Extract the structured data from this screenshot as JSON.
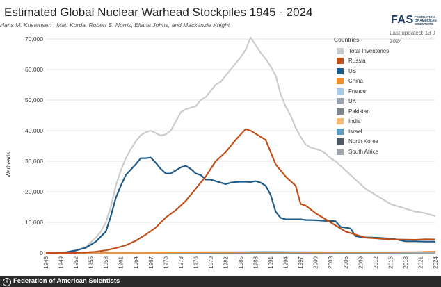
{
  "header": {
    "title": "Estimated Global Nuclear Warhead Stockpiles 1945 - 2024",
    "subtitle": "Hans M. Kristensen , Matt Korda, Robert S. Norris, Eliana Johns, and Mackenzie Knight",
    "logo": "FAS",
    "logo_text": "FEDERATION OF AMERICAN SCIENTISTS",
    "updated_line1": "Last updated: 13 J",
    "updated_line2": "2024"
  },
  "footer": {
    "credit": "Federation of American Scientists"
  },
  "legend": {
    "title": "Countries",
    "items": [
      {
        "label": "Total Inventories",
        "color": "#c9cccf"
      },
      {
        "label": "Russia",
        "color": "#c0501a"
      },
      {
        "label": "US",
        "color": "#1f5a86"
      },
      {
        "label": "China",
        "color": "#f28e2b"
      },
      {
        "label": "France",
        "color": "#a7cbe4"
      },
      {
        "label": "UK",
        "color": "#9aa3ab"
      },
      {
        "label": "Pakistan",
        "color": "#7b848c"
      },
      {
        "label": "India",
        "color": "#f5bc79"
      },
      {
        "label": "Israel",
        "color": "#5b9bc5"
      },
      {
        "label": "North Korea",
        "color": "#4f5963"
      },
      {
        "label": "South Africa",
        "color": "#9ea4aa"
      }
    ]
  },
  "chart_data": {
    "type": "line",
    "title": "Estimated Global Nuclear Warhead Stockpiles 1945 - 2024",
    "xlabel": "",
    "ylabel": "Warheads",
    "xlim": [
      1946,
      2024
    ],
    "ylim": [
      0,
      70000
    ],
    "yticks": [
      0,
      10000,
      20000,
      30000,
      40000,
      50000,
      60000,
      70000
    ],
    "ytick_labels": [
      "0",
      "10,000",
      "20,000",
      "30,000",
      "40,000",
      "50,000",
      "60,000",
      "70,000"
    ],
    "xticks": [
      1946,
      1949,
      1952,
      1955,
      1958,
      1961,
      1964,
      1967,
      1970,
      1973,
      1976,
      1979,
      1982,
      1985,
      1988,
      1991,
      1994,
      1997,
      2000,
      2003,
      2006,
      2009,
      2012,
      2015,
      2018,
      2021,
      2024
    ],
    "xtick_labels": [
      "1946",
      "1949",
      "1952",
      "1955",
      "1958",
      "1961",
      "1964",
      "1967",
      "1970",
      "1973",
      "1976",
      "1979",
      "1982",
      "1985",
      "1988",
      "1991",
      "1994",
      "1997",
      "2000",
      "2003",
      "2006",
      "2009",
      "2012",
      "2015",
      "2018",
      "2021",
      "2024"
    ],
    "series": [
      {
        "name": "Total Inventories",
        "color": "#c9cccf",
        "x": [
          1946,
          1948,
          1950,
          1952,
          1954,
          1956,
          1957,
          1958,
          1959,
          1960,
          1961,
          1962,
          1963,
          1964,
          1965,
          1966,
          1967,
          1968,
          1969,
          1970,
          1971,
          1972,
          1973,
          1974,
          1975,
          1976,
          1977,
          1978,
          1979,
          1980,
          1981,
          1982,
          1983,
          1984,
          1985,
          1986,
          1987,
          1988,
          1989,
          1990,
          1991,
          1992,
          1993,
          1994,
          1995,
          1996,
          1997,
          1998,
          1999,
          2000,
          2001,
          2002,
          2003,
          2004,
          2005,
          2006,
          2007,
          2008,
          2009,
          2010,
          2011,
          2012,
          2013,
          2014,
          2015,
          2016,
          2017,
          2018,
          2019,
          2020,
          2021,
          2022,
          2023,
          2024
        ],
        "values": [
          9,
          100,
          300,
          900,
          2000,
          5000,
          7000,
          10000,
          15000,
          22000,
          27000,
          31000,
          34000,
          36500,
          38500,
          39500,
          40000,
          39200,
          38400,
          38800,
          40000,
          43000,
          46000,
          47000,
          47500,
          48000,
          50000,
          51000,
          53000,
          55000,
          56000,
          58000,
          60000,
          62000,
          64000,
          66500,
          70500,
          68000,
          65500,
          63500,
          61000,
          58000,
          52000,
          48000,
          45000,
          41000,
          38000,
          35500,
          34500,
          34000,
          33500,
          32500,
          31000,
          30000,
          28500,
          27000,
          25500,
          24000,
          22500,
          21000,
          20000,
          19000,
          18000,
          17000,
          16000,
          15500,
          15000,
          14500,
          14000,
          13500,
          13300,
          13000,
          12500,
          12100
        ]
      },
      {
        "name": "Russia",
        "color": "#c0501a",
        "x": [
          1946,
          1949,
          1950,
          1952,
          1954,
          1956,
          1958,
          1960,
          1962,
          1964,
          1966,
          1968,
          1970,
          1972,
          1974,
          1976,
          1978,
          1980,
          1982,
          1984,
          1986,
          1987,
          1988,
          1990,
          1991,
          1992,
          1993,
          1994,
          1996,
          1997,
          1998,
          2000,
          2002,
          2004,
          2006,
          2008,
          2010,
          2012,
          2014,
          2016,
          2018,
          2020,
          2022,
          2024
        ],
        "values": [
          0,
          0,
          5,
          50,
          150,
          400,
          870,
          1600,
          2500,
          4000,
          6000,
          8300,
          11600,
          14000,
          17000,
          21000,
          25000,
          30000,
          33000,
          37000,
          40500,
          40000,
          39000,
          37000,
          33000,
          29000,
          27000,
          25000,
          22000,
          16000,
          15500,
          13000,
          11000,
          9000,
          7000,
          6000,
          5000,
          4800,
          4500,
          4400,
          4350,
          4300,
          4450,
          4400
        ]
      },
      {
        "name": "US",
        "color": "#1f5a86",
        "x": [
          1946,
          1948,
          1950,
          1952,
          1954,
          1956,
          1958,
          1959,
          1960,
          1961,
          1962,
          1964,
          1965,
          1966,
          1967,
          1968,
          1969,
          1970,
          1971,
          1972,
          1973,
          1974,
          1975,
          1976,
          1977,
          1978,
          1979,
          1980,
          1981,
          1982,
          1983,
          1984,
          1985,
          1986,
          1987,
          1988,
          1989,
          1990,
          1991,
          1992,
          1993,
          1994,
          1995,
          1996,
          1997,
          1998,
          2000,
          2002,
          2004,
          2005,
          2006,
          2007,
          2008,
          2009,
          2010,
          2012,
          2014,
          2016,
          2018,
          2020,
          2022,
          2024
        ],
        "values": [
          9,
          50,
          200,
          800,
          1700,
          3700,
          7000,
          12000,
          18000,
          22000,
          25500,
          29000,
          31000,
          31000,
          31200,
          29500,
          27500,
          26000,
          26000,
          27000,
          28000,
          28500,
          27500,
          26000,
          25500,
          24000,
          24000,
          23500,
          23000,
          22500,
          23000,
          23200,
          23300,
          23300,
          23200,
          23500,
          23000,
          22000,
          19000,
          13500,
          11500,
          11000,
          11000,
          11000,
          11000,
          10800,
          10700,
          10500,
          10400,
          8500,
          8300,
          8000,
          5500,
          5200,
          5100,
          5000,
          4800,
          4500,
          3800,
          3800,
          3700,
          3700
        ]
      },
      {
        "name": "China",
        "color": "#f28e2b",
        "x": [
          1946,
          1964,
          1970,
          1980,
          1990,
          2000,
          2010,
          2020,
          2024
        ],
        "values": [
          0,
          5,
          75,
          205,
          230,
          230,
          250,
          350,
          500
        ]
      },
      {
        "name": "France",
        "color": "#a7cbe4",
        "x": [
          1946,
          1964,
          1970,
          1980,
          1990,
          2000,
          2010,
          2024
        ],
        "values": [
          0,
          4,
          36,
          250,
          500,
          350,
          300,
          290
        ]
      },
      {
        "name": "UK",
        "color": "#9aa3ab",
        "x": [
          1946,
          1953,
          1960,
          1970,
          1980,
          1990,
          2000,
          2010,
          2024
        ],
        "values": [
          0,
          1,
          30,
          280,
          350,
          300,
          280,
          225,
          225
        ]
      },
      {
        "name": "Pakistan",
        "color": "#7b848c",
        "x": [
          1946,
          1998,
          2010,
          2024
        ],
        "values": [
          0,
          5,
          90,
          170
        ]
      },
      {
        "name": "India",
        "color": "#f5bc79",
        "x": [
          1946,
          1974,
          2000,
          2010,
          2024
        ],
        "values": [
          0,
          1,
          20,
          70,
          170
        ]
      },
      {
        "name": "Israel",
        "color": "#5b9bc5",
        "x": [
          1946,
          1967,
          1980,
          2000,
          2024
        ],
        "values": [
          0,
          2,
          40,
          80,
          90
        ]
      },
      {
        "name": "North Korea",
        "color": "#4f5963",
        "x": [
          1946,
          2006,
          2016,
          2024
        ],
        "values": [
          0,
          1,
          15,
          50
        ]
      },
      {
        "name": "South Africa",
        "color": "#9ea4aa",
        "x": [
          1946,
          1979,
          1989,
          1991,
          2024
        ],
        "values": [
          0,
          1,
          6,
          0,
          0
        ]
      }
    ]
  }
}
